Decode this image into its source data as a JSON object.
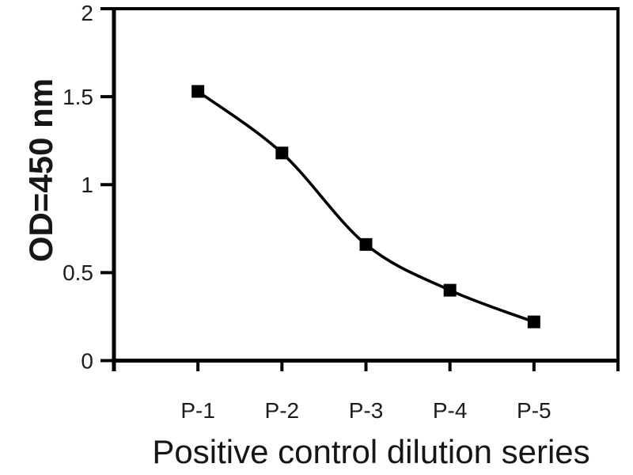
{
  "chart_data": {
    "type": "line",
    "xlabel": "Positive control dilution series",
    "ylabel": "OD=450 nm",
    "categories": [
      "P-1",
      "P-2",
      "P-3",
      "P-4",
      "P-5"
    ],
    "values": [
      1.53,
      1.18,
      0.66,
      0.4,
      0.22
    ],
    "ylim": [
      0,
      2
    ],
    "yticks": [
      0,
      0.5,
      1,
      1.5,
      2
    ],
    "ytick_labels": [
      "0",
      "0.5",
      "1",
      "1.5",
      "2"
    ],
    "line_style": "smooth",
    "marker": "filled-square",
    "grid": false,
    "legend": "none",
    "layout_hints": {
      "plot_border": true,
      "tick_style": "outside",
      "x_divisions": 6,
      "points_at_divisions": [
        1,
        2,
        3,
        4,
        5
      ]
    },
    "colors": {
      "line": "#000000",
      "marker": "#000000",
      "axis": "#000000",
      "text": "#1c1c1c",
      "background": "#ffffff"
    }
  }
}
